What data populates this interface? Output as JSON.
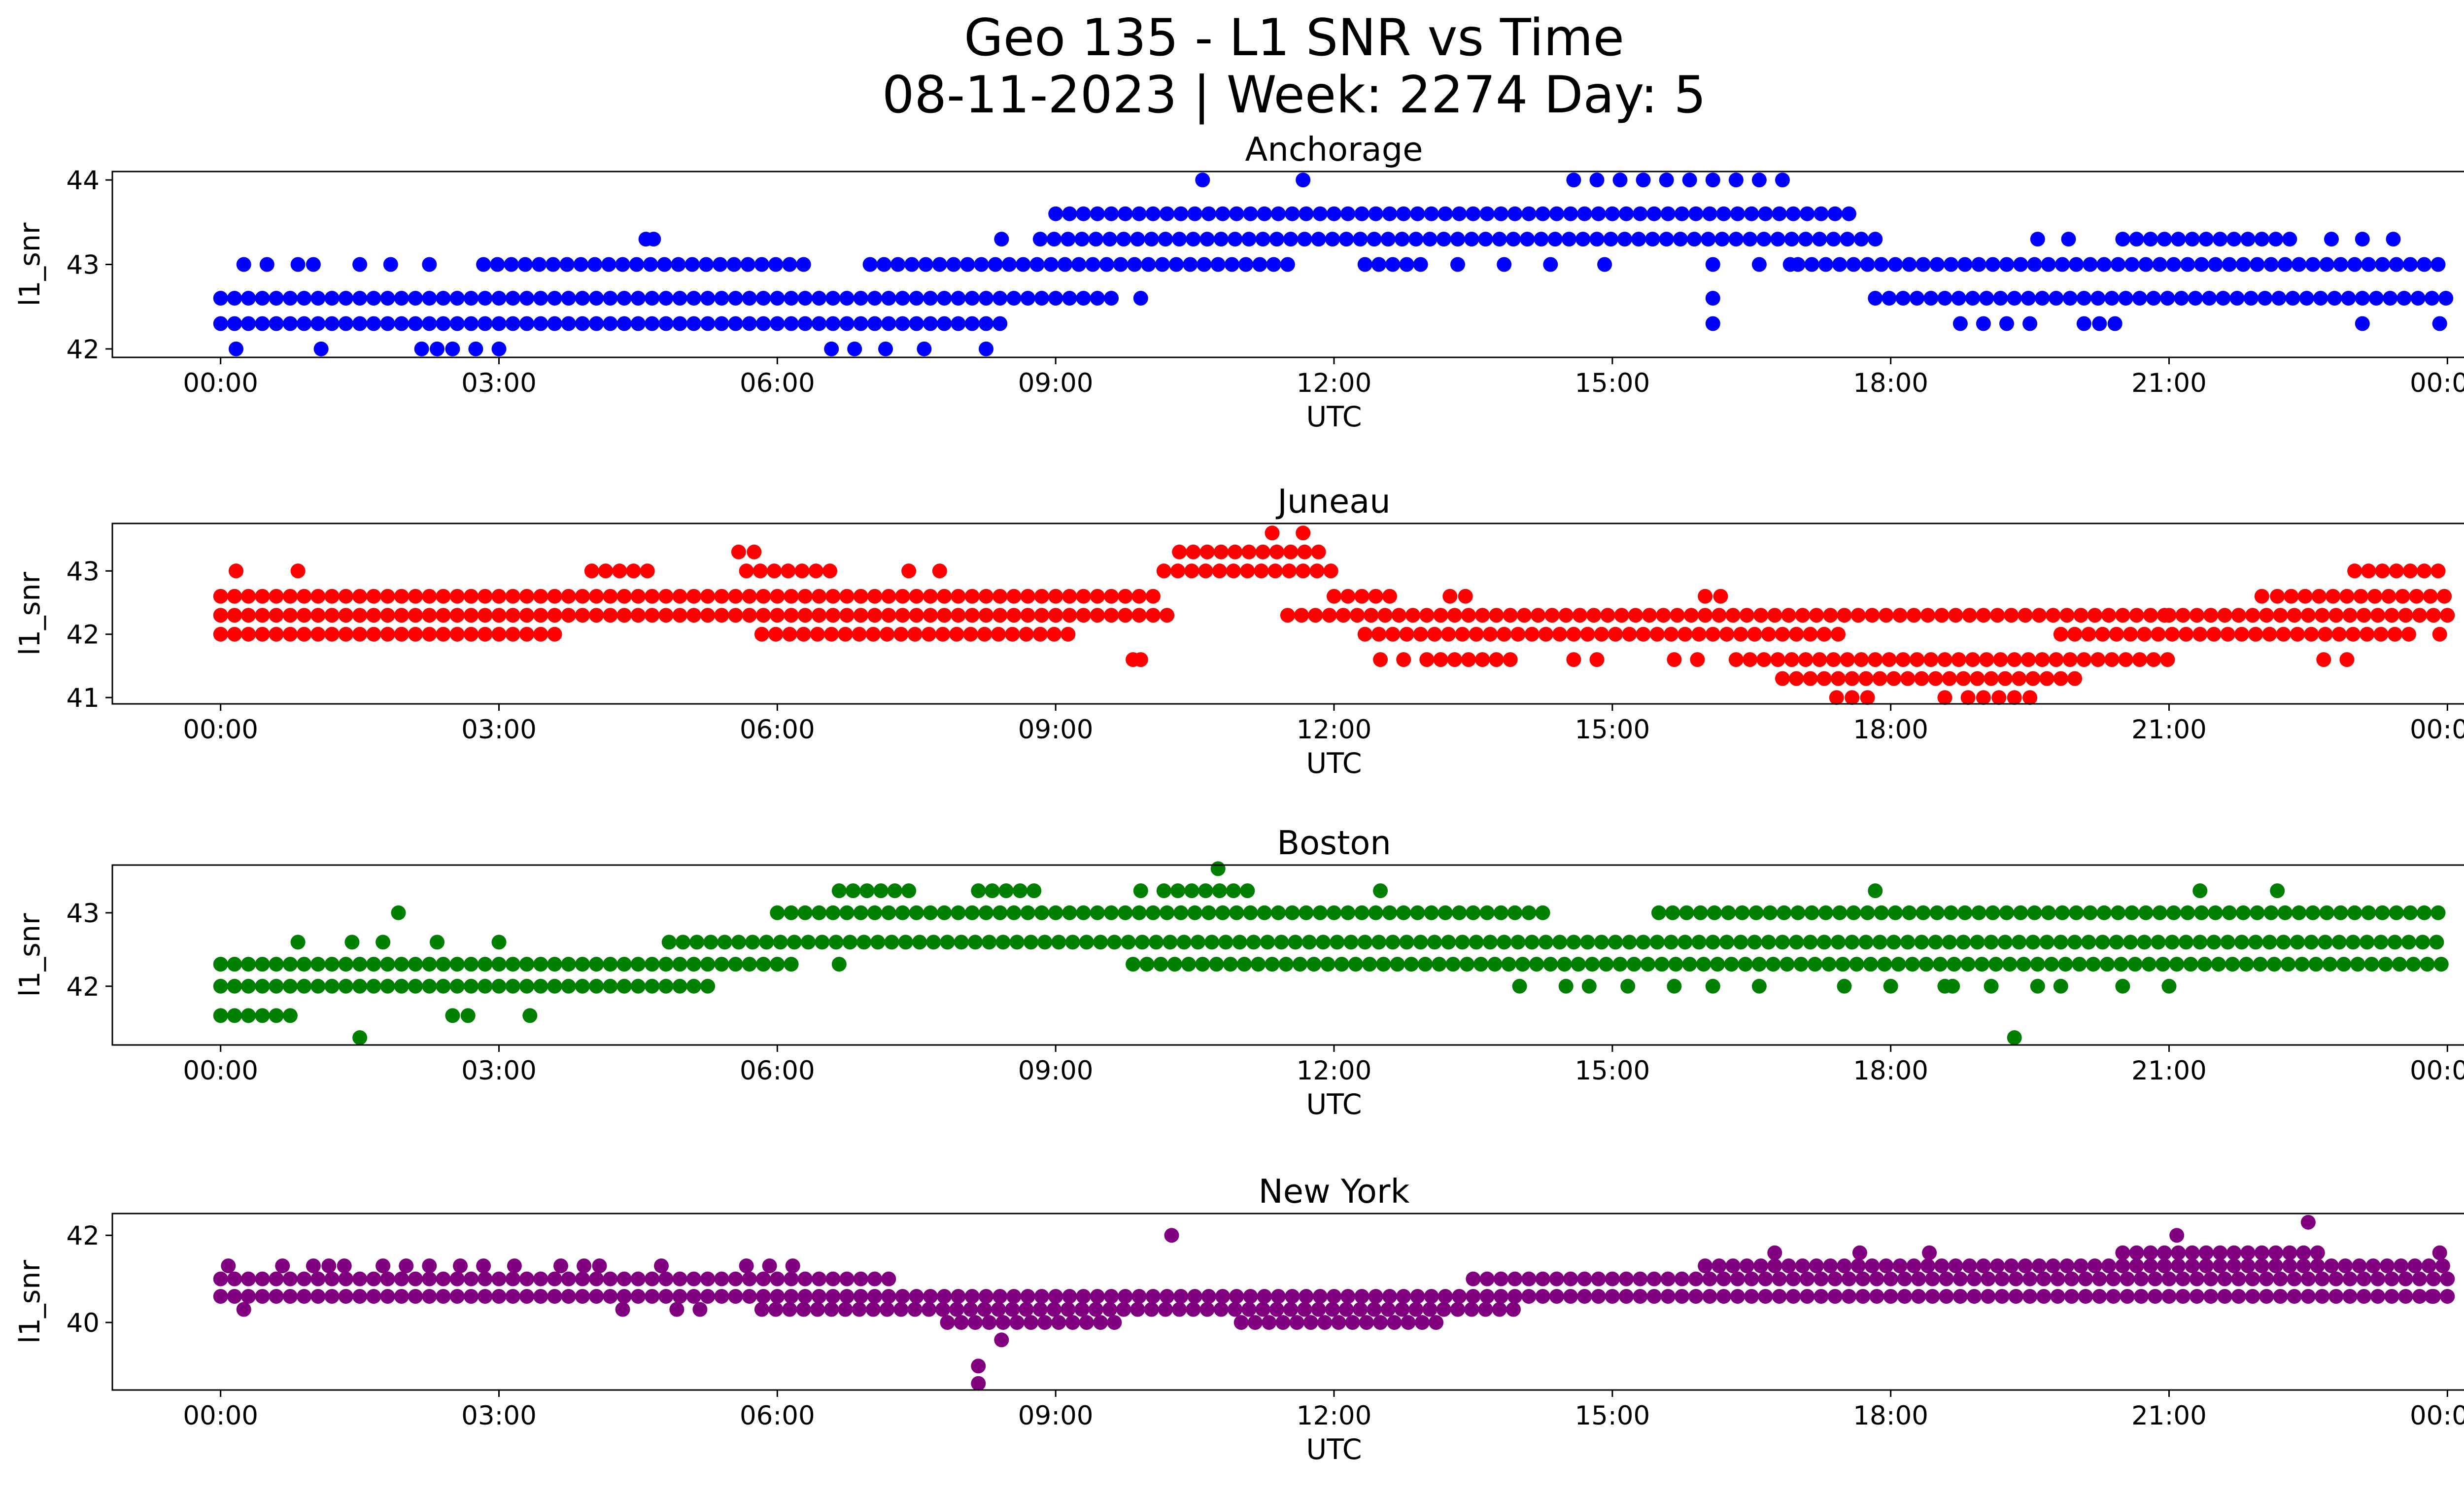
{
  "figure": {
    "title_line1": "Geo 135 - L1 SNR vs Time",
    "title_line2": "08-11-2023 | Week: 2274 Day: 5"
  },
  "chart_data": [
    {
      "type": "scatter",
      "title": "Anchorage",
      "xlabel": "UTC",
      "ylabel": "l1_snr",
      "color": "#0000ff",
      "xlim": [
        "-01:10",
        "25:10"
      ],
      "ylim": [
        41.9,
        44.1
      ],
      "xticks": [
        "00:00",
        "03:00",
        "06:00",
        "09:00",
        "12:00",
        "15:00",
        "18:00",
        "21:00",
        "00:00"
      ],
      "yticks": [
        "42",
        "43",
        "44"
      ],
      "grid": false,
      "bands": [
        {
          "y": 42.6,
          "segments": [
            [
              "00:00",
              "09:40"
            ],
            [
              "17:50",
              "24:00"
            ]
          ]
        },
        {
          "y": 42.3,
          "segments": [
            [
              "00:00",
              "08:30"
            ],
            [
              "23:55",
              "24:00"
            ]
          ]
        },
        {
          "y": 43.0,
          "segments": [
            [
              "02:50",
              "06:20"
            ],
            [
              "07:00",
              "11:30"
            ],
            [
              "12:20",
              "13:00"
            ],
            [
              "17:00",
              "24:00"
            ]
          ]
        },
        {
          "y": 43.3,
          "segments": [
            [
              "08:50",
              "17:50"
            ],
            [
              "20:30",
              "22:20"
            ]
          ]
        },
        {
          "y": 43.6,
          "segments": [
            [
              "09:00",
              "17:40"
            ]
          ]
        }
      ],
      "points": [
        [
          "00:10",
          42
        ],
        [
          "01:05",
          42
        ],
        [
          "02:10",
          42
        ],
        [
          "02:20",
          42
        ],
        [
          "02:30",
          42
        ],
        [
          "02:45",
          42
        ],
        [
          "03:00",
          42
        ],
        [
          "06:35",
          42
        ],
        [
          "06:50",
          42
        ],
        [
          "07:10",
          42
        ],
        [
          "07:35",
          42
        ],
        [
          "08:15",
          42
        ],
        [
          "00:15",
          43
        ],
        [
          "00:30",
          43
        ],
        [
          "00:50",
          43
        ],
        [
          "01:00",
          43
        ],
        [
          "01:30",
          43
        ],
        [
          "01:50",
          43
        ],
        [
          "02:15",
          43
        ],
        [
          "04:35",
          43.3
        ],
        [
          "04:40",
          43.3
        ],
        [
          "08:25",
          43.3
        ],
        [
          "09:55",
          42.6
        ],
        [
          "10:35",
          44
        ],
        [
          "11:40",
          44
        ],
        [
          "14:35",
          44
        ],
        [
          "14:50",
          44
        ],
        [
          "15:05",
          44
        ],
        [
          "15:20",
          44
        ],
        [
          "15:35",
          44
        ],
        [
          "15:50",
          44
        ],
        [
          "16:05",
          44
        ],
        [
          "16:20",
          44
        ],
        [
          "16:35",
          44
        ],
        [
          "16:50",
          44
        ],
        [
          "16:05",
          43
        ],
        [
          "16:05",
          42.6
        ],
        [
          "16:05",
          42.3
        ],
        [
          "16:35",
          43
        ],
        [
          "16:55",
          43
        ],
        [
          "13:20",
          43
        ],
        [
          "13:50",
          43
        ],
        [
          "14:20",
          43
        ],
        [
          "14:55",
          43
        ],
        [
          "18:45",
          42.3
        ],
        [
          "19:00",
          42.3
        ],
        [
          "19:15",
          42.3
        ],
        [
          "19:30",
          42.3
        ],
        [
          "20:05",
          42.3
        ],
        [
          "20:15",
          42.3
        ],
        [
          "20:25",
          42.3
        ],
        [
          "19:35",
          43.3
        ],
        [
          "19:55",
          43.3
        ],
        [
          "22:45",
          43.3
        ],
        [
          "23:05",
          43.3
        ],
        [
          "23:25",
          43.3
        ],
        [
          "23:05",
          42.3
        ],
        [
          "23:55",
          42.3
        ]
      ]
    },
    {
      "type": "scatter",
      "title": "Juneau",
      "xlabel": "UTC",
      "ylabel": "l1_snr",
      "color": "#ff0000",
      "xlim": [
        "-01:10",
        "25:10"
      ],
      "ylim": [
        40.9,
        43.75
      ],
      "xticks": [
        "00:00",
        "03:00",
        "06:00",
        "09:00",
        "12:00",
        "15:00",
        "18:00",
        "21:00",
        "00:00"
      ],
      "yticks": [
        "41",
        "42",
        "43"
      ],
      "grid": false,
      "bands": [
        {
          "y": 42.6,
          "segments": [
            [
              "00:00",
              "10:10"
            ],
            [
              "12:00",
              "12:40"
            ],
            [
              "22:10",
              "24:00"
            ]
          ]
        },
        {
          "y": 42.3,
          "segments": [
            [
              "00:00",
              "10:20"
            ],
            [
              "11:30",
              "21:00"
            ],
            [
              "21:00",
              "24:00"
            ]
          ]
        },
        {
          "y": 42.0,
          "segments": [
            [
              "00:00",
              "03:40"
            ],
            [
              "05:50",
              "09:10"
            ],
            [
              "12:20",
              "17:30"
            ],
            [
              "19:50",
              "23:40"
            ]
          ]
        },
        {
          "y": 43.0,
          "segments": [
            [
              "10:10",
              "12:00"
            ],
            [
              "04:00",
              "04:40"
            ],
            [
              "05:40",
              "06:40"
            ],
            [
              "23:00",
              "24:00"
            ]
          ]
        },
        {
          "y": 43.3,
          "segments": [
            [
              "10:20",
              "11:50"
            ]
          ]
        },
        {
          "y": 41.6,
          "segments": [
            [
              "16:20",
              "21:00"
            ],
            [
              "13:00",
              "14:00"
            ]
          ]
        },
        {
          "y": 41.3,
          "segments": [
            [
              "16:50",
              "20:00"
            ]
          ]
        }
      ],
      "points": [
        [
          "00:10",
          43
        ],
        [
          "00:50",
          43
        ],
        [
          "05:35",
          43.3
        ],
        [
          "05:45",
          43.3
        ],
        [
          "07:25",
          43
        ],
        [
          "07:45",
          43
        ],
        [
          "09:50",
          41.6
        ],
        [
          "09:55",
          41.6
        ],
        [
          "11:20",
          43.6
        ],
        [
          "11:40",
          43.6
        ],
        [
          "12:30",
          41.6
        ],
        [
          "12:45",
          41.6
        ],
        [
          "13:15",
          42.6
        ],
        [
          "13:25",
          42.6
        ],
        [
          "14:35",
          41.6
        ],
        [
          "14:50",
          41.6
        ],
        [
          "15:40",
          41.6
        ],
        [
          "15:55",
          41.6
        ],
        [
          "16:00",
          42.6
        ],
        [
          "16:10",
          42.6
        ],
        [
          "17:25",
          41
        ],
        [
          "17:35",
          41
        ],
        [
          "17:45",
          41
        ],
        [
          "18:35",
          41
        ],
        [
          "18:50",
          41
        ],
        [
          "19:00",
          41
        ],
        [
          "19:10",
          41
        ],
        [
          "19:20",
          41
        ],
        [
          "19:30",
          41
        ],
        [
          "22:40",
          41.6
        ],
        [
          "22:55",
          41.6
        ],
        [
          "22:00",
          42.6
        ],
        [
          "23:55",
          42
        ]
      ]
    },
    {
      "type": "scatter",
      "title": "Boston",
      "xlabel": "UTC",
      "ylabel": "l1_snr",
      "color": "#008000",
      "xlim": [
        "-01:10",
        "25:10"
      ],
      "ylim": [
        41.2,
        43.65
      ],
      "xticks": [
        "00:00",
        "03:00",
        "06:00",
        "09:00",
        "12:00",
        "15:00",
        "18:00",
        "21:00",
        "00:00"
      ],
      "yticks": [
        "42",
        "43"
      ],
      "grid": false,
      "bands": [
        {
          "y": 42.3,
          "segments": [
            [
              "00:00",
              "06:15"
            ],
            [
              "09:50",
              "24:00"
            ]
          ]
        },
        {
          "y": 42.0,
          "segments": [
            [
              "00:00",
              "05:15"
            ]
          ]
        },
        {
          "y": 42.6,
          "segments": [
            [
              "04:50",
              "24:00"
            ]
          ]
        },
        {
          "y": 41.6,
          "segments": [
            [
              "00:00",
              "00:50"
            ]
          ]
        },
        {
          "y": 43.0,
          "segments": [
            [
              "06:00",
              "14:20"
            ],
            [
              "15:30",
              "24:00"
            ]
          ]
        },
        {
          "y": 43.3,
          "segments": [
            [
              "06:40",
              "07:30"
            ],
            [
              "08:10",
              "08:50"
            ],
            [
              "10:10",
              "11:10"
            ]
          ]
        }
      ],
      "points": [
        [
          "00:50",
          42.6
        ],
        [
          "01:30",
          41.3
        ],
        [
          "01:25",
          42.6
        ],
        [
          "01:45",
          42.6
        ],
        [
          "01:55",
          43
        ],
        [
          "02:20",
          42.6
        ],
        [
          "02:30",
          41.6
        ],
        [
          "02:40",
          41.6
        ],
        [
          "03:00",
          42.6
        ],
        [
          "03:20",
          41.6
        ],
        [
          "06:40",
          42.3
        ],
        [
          "09:55",
          43.3
        ],
        [
          "10:45",
          43.6
        ],
        [
          "12:30",
          43.3
        ],
        [
          "14:00",
          42
        ],
        [
          "14:30",
          42
        ],
        [
          "14:45",
          42
        ],
        [
          "15:10",
          42
        ],
        [
          "15:40",
          42
        ],
        [
          "16:05",
          42
        ],
        [
          "16:35",
          42
        ],
        [
          "17:30",
          42
        ],
        [
          "17:50",
          43.3
        ],
        [
          "18:00",
          42
        ],
        [
          "18:35",
          42
        ],
        [
          "18:40",
          42
        ],
        [
          "19:05",
          42
        ],
        [
          "19:20",
          41.3
        ],
        [
          "19:35",
          42
        ],
        [
          "19:50",
          42
        ],
        [
          "20:30",
          42
        ],
        [
          "21:00",
          42
        ],
        [
          "21:20",
          43.3
        ],
        [
          "22:10",
          43.3
        ]
      ]
    },
    {
      "type": "scatter",
      "title": "New York",
      "xlabel": "UTC",
      "ylabel": "l1_snr",
      "color": "#800080",
      "xlim": [
        "-01:10",
        "25:10"
      ],
      "ylim": [
        38.45,
        42.5
      ],
      "xticks": [
        "00:00",
        "03:00",
        "06:00",
        "09:00",
        "12:00",
        "15:00",
        "18:00",
        "21:00",
        "00:00"
      ],
      "yticks": [
        "40",
        "42"
      ],
      "grid": false,
      "bands": [
        {
          "y": 40.6,
          "segments": [
            [
              "00:00",
              "24:00"
            ]
          ]
        },
        {
          "y": 41.0,
          "segments": [
            [
              "00:00",
              "07:20"
            ],
            [
              "13:30",
              "24:00"
            ]
          ]
        },
        {
          "y": 40.3,
          "segments": [
            [
              "05:50",
              "14:00"
            ]
          ]
        },
        {
          "y": 40.0,
          "segments": [
            [
              "07:50",
              "09:40"
            ],
            [
              "11:00",
              "13:10"
            ]
          ]
        },
        {
          "y": 41.3,
          "segments": [
            [
              "16:00",
              "24:00"
            ]
          ]
        },
        {
          "y": 41.6,
          "segments": [
            [
              "20:30",
              "22:40"
            ]
          ]
        }
      ],
      "points": [
        [
          "00:05",
          41.3
        ],
        [
          "00:15",
          40.3
        ],
        [
          "00:40",
          41.3
        ],
        [
          "01:00",
          41.3
        ],
        [
          "01:10",
          41.3
        ],
        [
          "01:20",
          41.3
        ],
        [
          "01:45",
          41.3
        ],
        [
          "02:00",
          41.3
        ],
        [
          "02:15",
          41.3
        ],
        [
          "02:35",
          41.3
        ],
        [
          "02:50",
          41.3
        ],
        [
          "03:10",
          41.3
        ],
        [
          "03:40",
          41.3
        ],
        [
          "03:55",
          41.3
        ],
        [
          "04:05",
          41.3
        ],
        [
          "04:20",
          40.3
        ],
        [
          "04:45",
          41.3
        ],
        [
          "04:55",
          40.3
        ],
        [
          "05:10",
          40.3
        ],
        [
          "05:40",
          41.3
        ],
        [
          "05:55",
          41.3
        ],
        [
          "06:10",
          41.3
        ],
        [
          "08:10",
          39
        ],
        [
          "08:10",
          38.6
        ],
        [
          "08:25",
          39.6
        ],
        [
          "10:15",
          42
        ],
        [
          "16:45",
          41.6
        ],
        [
          "17:40",
          41.6
        ],
        [
          "18:25",
          41.6
        ],
        [
          "21:05",
          42
        ],
        [
          "22:30",
          42.3
        ],
        [
          "23:55",
          41.6
        ],
        [
          "23:50",
          40.6
        ]
      ]
    }
  ]
}
